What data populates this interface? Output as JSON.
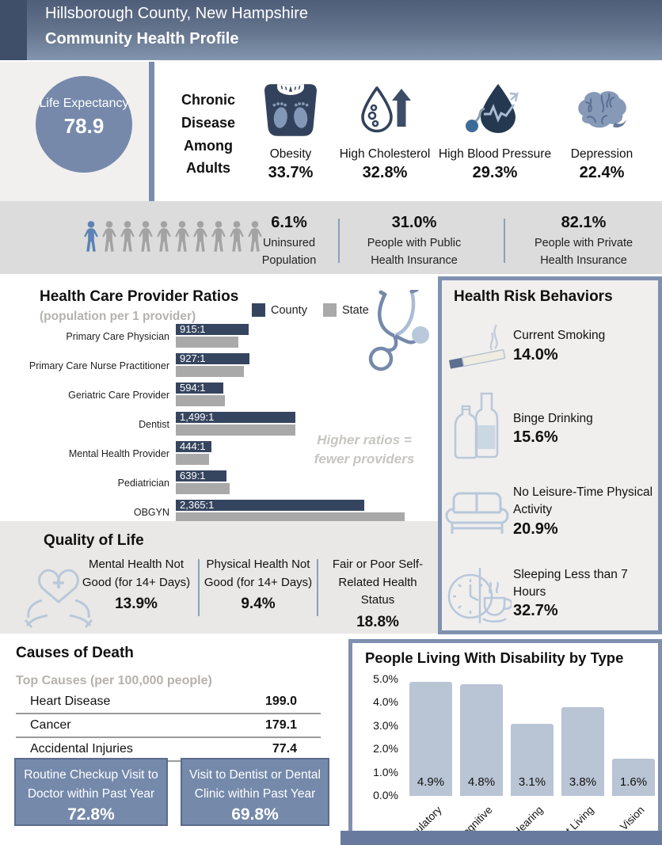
{
  "header": {
    "location": "Hillsborough County, New Hampshire",
    "title": "Community Health Profile"
  },
  "life_expectancy": {
    "label": "Life Expectancy",
    "value": "78.9"
  },
  "chronic_disease": {
    "heading": "Chronic Disease Among Adults",
    "items": [
      {
        "icon": "scale-icon",
        "label": "Obesity",
        "value": "33.7%"
      },
      {
        "icon": "cholesterol-drop-icon",
        "label": "High Cholesterol",
        "value": "32.8%"
      },
      {
        "icon": "blood-pressure-icon",
        "label": "High Blood Pressure",
        "value": "29.3%"
      },
      {
        "icon": "brain-icon",
        "label": "Depression",
        "value": "22.4%"
      }
    ]
  },
  "insurance": {
    "people_total": 10,
    "people_highlighted": 1,
    "stats": [
      {
        "value": "6.1%",
        "label_line1": "Uninsured",
        "label_line2": "Population"
      },
      {
        "value": "31.0%",
        "label_line1": "People with Public",
        "label_line2": "Health Insurance"
      },
      {
        "value": "82.1%",
        "label_line1": "People with Private",
        "label_line2": "Health Insurance"
      }
    ]
  },
  "provider_ratios": {
    "title": "Health Care Provider Ratios",
    "subtitle": "(population per 1 provider)",
    "note_line1": "Higher ratios =",
    "note_line2": "fewer providers"
  },
  "health_risk": {
    "title": "Health Risk Behaviors",
    "items": [
      {
        "icon": "cigarette-icon",
        "label": "Current Smoking",
        "value": "14.0%"
      },
      {
        "icon": "bottles-icon",
        "label": "Binge Drinking",
        "value": "15.6%"
      },
      {
        "icon": "couch-icon",
        "label": "No Leisure-Time Physical Activity",
        "value": "20.9%"
      },
      {
        "icon": "clock-coffee-icon",
        "label": "Sleeping Less than 7 Hours",
        "value": "32.7%"
      }
    ]
  },
  "quality_of_life": {
    "title": "Quality of Life",
    "icon": "hands-heart-icon",
    "items": [
      {
        "label": "Mental Health Not Good (for 14+ Days)",
        "value": "13.9%"
      },
      {
        "label": "Physical Health Not Good (for 14+ Days)",
        "value": "9.4%"
      },
      {
        "label": "Fair or Poor Self-Related Health Status",
        "value": "18.8%"
      }
    ]
  },
  "causes_of_death": {
    "title": "Causes of Death",
    "subtitle": "Top Causes (per 100,000 people)",
    "rows": [
      {
        "cause": "Heart Disease",
        "rate": "199.0"
      },
      {
        "cause": "Cancer",
        "rate": "179.1"
      },
      {
        "cause": "Accidental Injuries",
        "rate": "77.4"
      }
    ]
  },
  "visits": [
    {
      "label": "Routine Checkup Visit to Doctor within Past Year",
      "value": "72.8%"
    },
    {
      "label": "Visit to Dentist or Dental Clinic within Past Year",
      "value": "69.8%"
    }
  ],
  "colors": {
    "county_navy": "#36455f",
    "state_gray": "#a9a9a9",
    "panel_blue": "#7589ab",
    "panel_border": "#7f91ae",
    "disability_bar": "#b9c4d4",
    "person_blue": "#5d82b4",
    "person_gray": "#a3a3a3"
  },
  "chart_data": [
    {
      "type": "bar",
      "orientation": "horizontal",
      "title": "Health Care Provider Ratios",
      "subtitle": "(population per 1 provider)",
      "categories": [
        "Primary Care Physician",
        "Primary Care Nurse Practitioner",
        "Geriatric Care Provider",
        "Dentist",
        "Mental Health Provider",
        "Pediatrician",
        "OBGYN"
      ],
      "series": [
        {
          "name": "County",
          "values": [
            915,
            927,
            594,
            1499,
            444,
            639,
            2365
          ],
          "labels": [
            "915:1",
            "927:1",
            "594:1",
            "1,499:1",
            "444:1",
            "639:1",
            "2,365:1"
          ]
        },
        {
          "name": "State",
          "values": [
            780,
            850,
            620,
            1500,
            420,
            680,
            2870
          ]
        }
      ],
      "xlim": [
        0,
        3000
      ],
      "x_ticks": [
        0,
        500,
        1000,
        1500,
        2000,
        2500,
        3000
      ],
      "legend_position": "top",
      "annotation": "Higher ratios = fewer providers",
      "grid": false
    },
    {
      "type": "bar",
      "orientation": "vertical",
      "title": "People Living With Disability by Type",
      "categories": [
        "Ambulatory",
        "Cognitive",
        "Hearing",
        "Independent Living",
        "Vision"
      ],
      "values": [
        4.9,
        4.8,
        3.1,
        3.8,
        1.6
      ],
      "value_labels": [
        "4.9%",
        "4.8%",
        "3.1%",
        "3.8%",
        "1.6%"
      ],
      "ylim": [
        0,
        5
      ],
      "y_ticks": [
        "5.0%",
        "4.0%",
        "3.0%",
        "2.0%",
        "1.0%",
        "0.0%"
      ],
      "grid": false
    }
  ]
}
